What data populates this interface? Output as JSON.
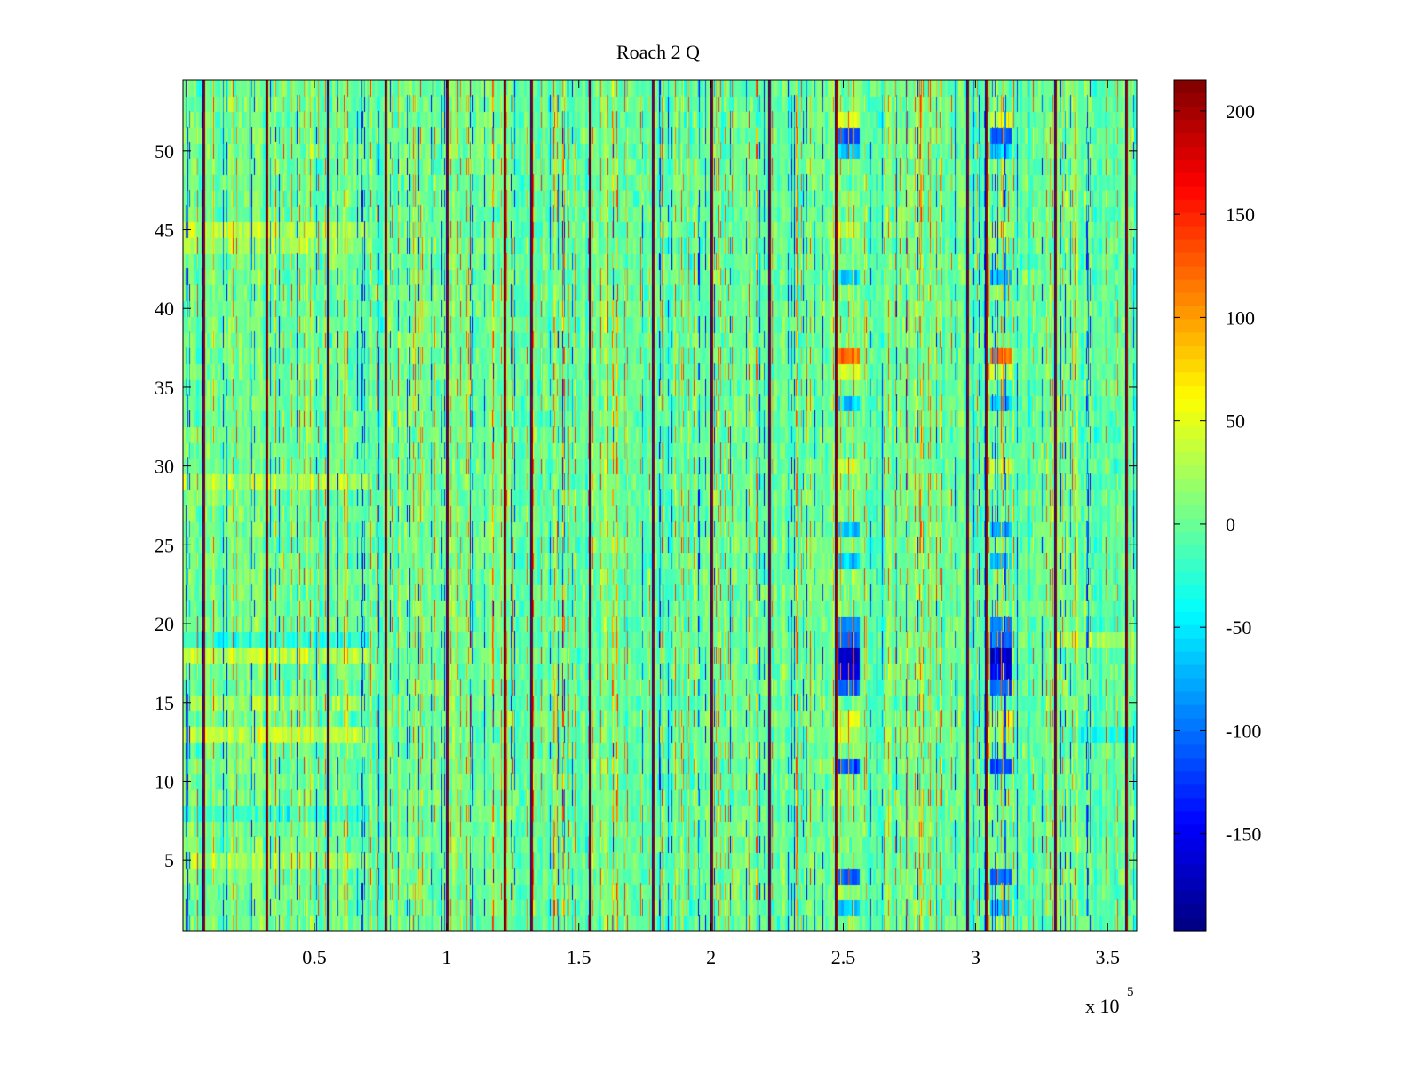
{
  "chart_data": {
    "type": "heatmap",
    "title": "Roach 2 Q",
    "colormap": "jet",
    "x_range": [
      300,
      361000
    ],
    "y_range": [
      0.5,
      54.5
    ],
    "xticks": [
      {
        "value": 50000,
        "label": "0.5"
      },
      {
        "value": 100000,
        "label": "1"
      },
      {
        "value": 150000,
        "label": "1.5"
      },
      {
        "value": 200000,
        "label": "2"
      },
      {
        "value": 250000,
        "label": "2.5"
      },
      {
        "value": 300000,
        "label": "3"
      },
      {
        "value": 350000,
        "label": "3.5"
      }
    ],
    "x_exponent_base": "x 10",
    "x_exponent_power": "5",
    "yticks": [
      5,
      10,
      15,
      20,
      25,
      30,
      35,
      40,
      45,
      50
    ],
    "colorbar": {
      "range": [
        -197,
        215
      ],
      "ticks": [
        200,
        150,
        100,
        50,
        0,
        -50,
        -100,
        -150
      ]
    },
    "background_mean": 0,
    "spike_columns_x": [
      8000,
      32000,
      55000,
      77000,
      100000,
      122000,
      132000,
      154000,
      178000,
      200000,
      222000,
      247000,
      297000,
      304000,
      330000,
      357000
    ],
    "block_columns_x": [
      [
        247500,
        255500
      ],
      [
        305000,
        313000
      ]
    ],
    "block_values_by_row": [
      {
        "row": 52,
        "value": 40
      },
      {
        "row": 51,
        "value": -110
      },
      {
        "row": 50,
        "value": -60
      },
      {
        "row": 45,
        "value": 30
      },
      {
        "row": 42,
        "value": -60
      },
      {
        "row": 37,
        "value": 120
      },
      {
        "row": 36,
        "value": 40
      },
      {
        "row": 34,
        "value": -60
      },
      {
        "row": 30,
        "value": 40
      },
      {
        "row": 26,
        "value": -70
      },
      {
        "row": 24,
        "value": -60
      },
      {
        "row": 20,
        "value": -90
      },
      {
        "row": 19,
        "value": -110
      },
      {
        "row": 18,
        "value": -170
      },
      {
        "row": 17,
        "value": -150
      },
      {
        "row": 16,
        "value": -110
      },
      {
        "row": 14,
        "value": 40
      },
      {
        "row": 13,
        "value": 30
      },
      {
        "row": 11,
        "value": -110
      },
      {
        "row": 4,
        "value": -110
      },
      {
        "row": 2,
        "value": -60
      }
    ],
    "row_bias_left_region": [
      {
        "row": 45,
        "value": 40
      },
      {
        "row": 44,
        "value": 30
      },
      {
        "row": 29,
        "value": 35
      },
      {
        "row": 18,
        "value": 40
      },
      {
        "row": 19,
        "value": -40
      },
      {
        "row": 13,
        "value": 50
      },
      {
        "row": 15,
        "value": 30
      },
      {
        "row": 5,
        "value": 30
      },
      {
        "row": 8,
        "value": -30
      }
    ]
  }
}
